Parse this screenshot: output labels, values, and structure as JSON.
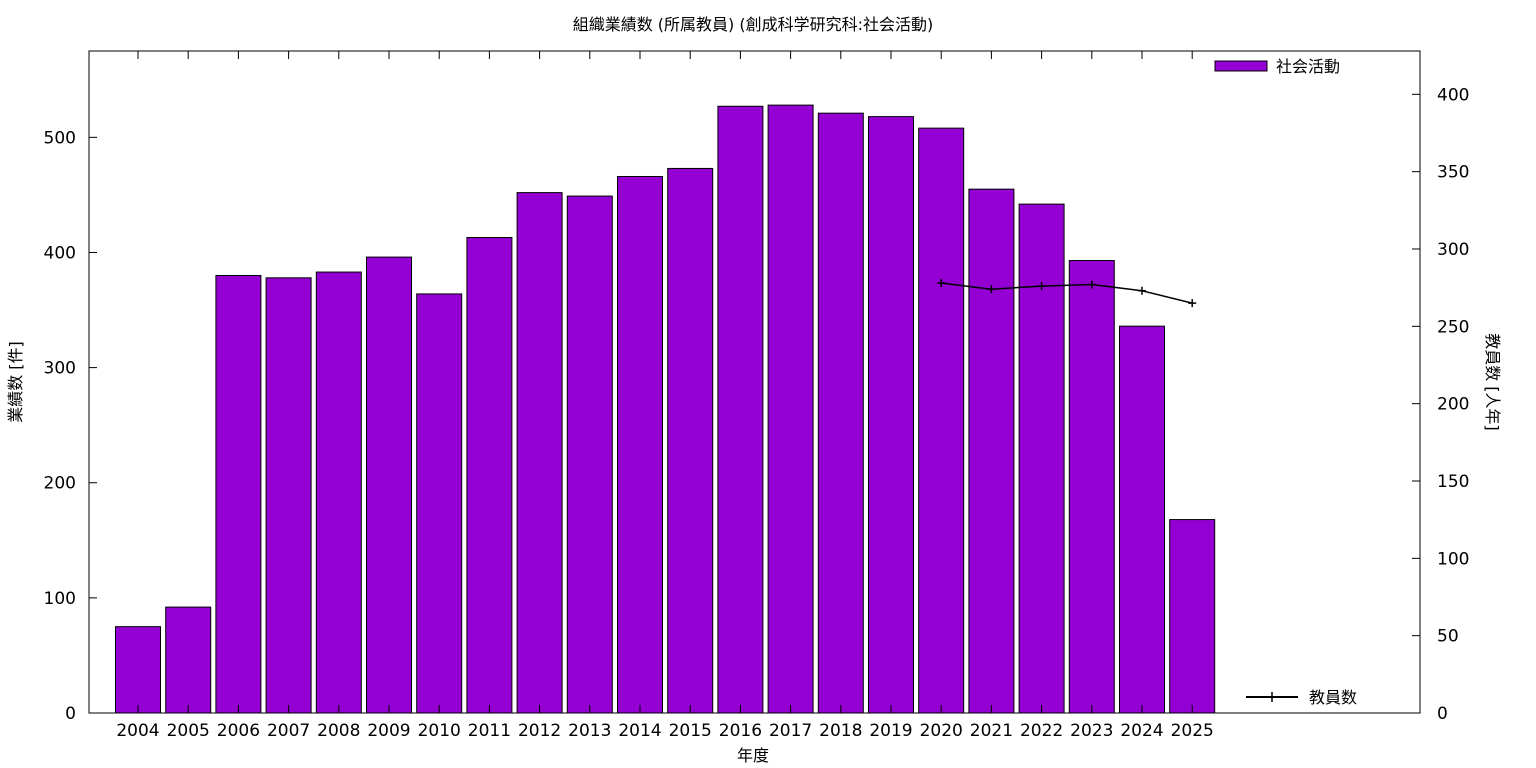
{
  "chart_data": {
    "type": "bar",
    "title": "組織業績数 (所属教員) (創成科学研究科:社会活動)",
    "xlabel": "年度",
    "ylabel": "業績数 [件]",
    "y2label": "教員数 [人年]",
    "categories": [
      "2004",
      "2005",
      "2006",
      "2007",
      "2008",
      "2009",
      "2010",
      "2011",
      "2012",
      "2013",
      "2014",
      "2015",
      "2016",
      "2017",
      "2018",
      "2019",
      "2020",
      "2021",
      "2022",
      "2023",
      "2024",
      "2025"
    ],
    "ylim": [
      0,
      575
    ],
    "y2lim": [
      0,
      428
    ],
    "yticks": [
      0,
      100,
      200,
      300,
      400,
      500
    ],
    "y2ticks": [
      0,
      50,
      100,
      150,
      200,
      250,
      300,
      350,
      400
    ],
    "bar_color": "#9400d3",
    "line_color": "#000000",
    "grid": false,
    "legend_position": "top-right",
    "series": [
      {
        "name": "社会活動",
        "type": "bar",
        "axis": "left",
        "values": [
          75,
          92,
          380,
          378,
          383,
          396,
          364,
          413,
          452,
          449,
          466,
          473,
          527,
          528,
          521,
          518,
          508,
          455,
          442,
          393,
          336,
          168
        ]
      },
      {
        "name": "教員数",
        "type": "line",
        "axis": "right",
        "x": [
          "2020",
          "2021",
          "2022",
          "2023",
          "2024",
          "2025"
        ],
        "values": [
          278,
          274,
          276,
          277,
          273,
          265
        ]
      }
    ]
  }
}
